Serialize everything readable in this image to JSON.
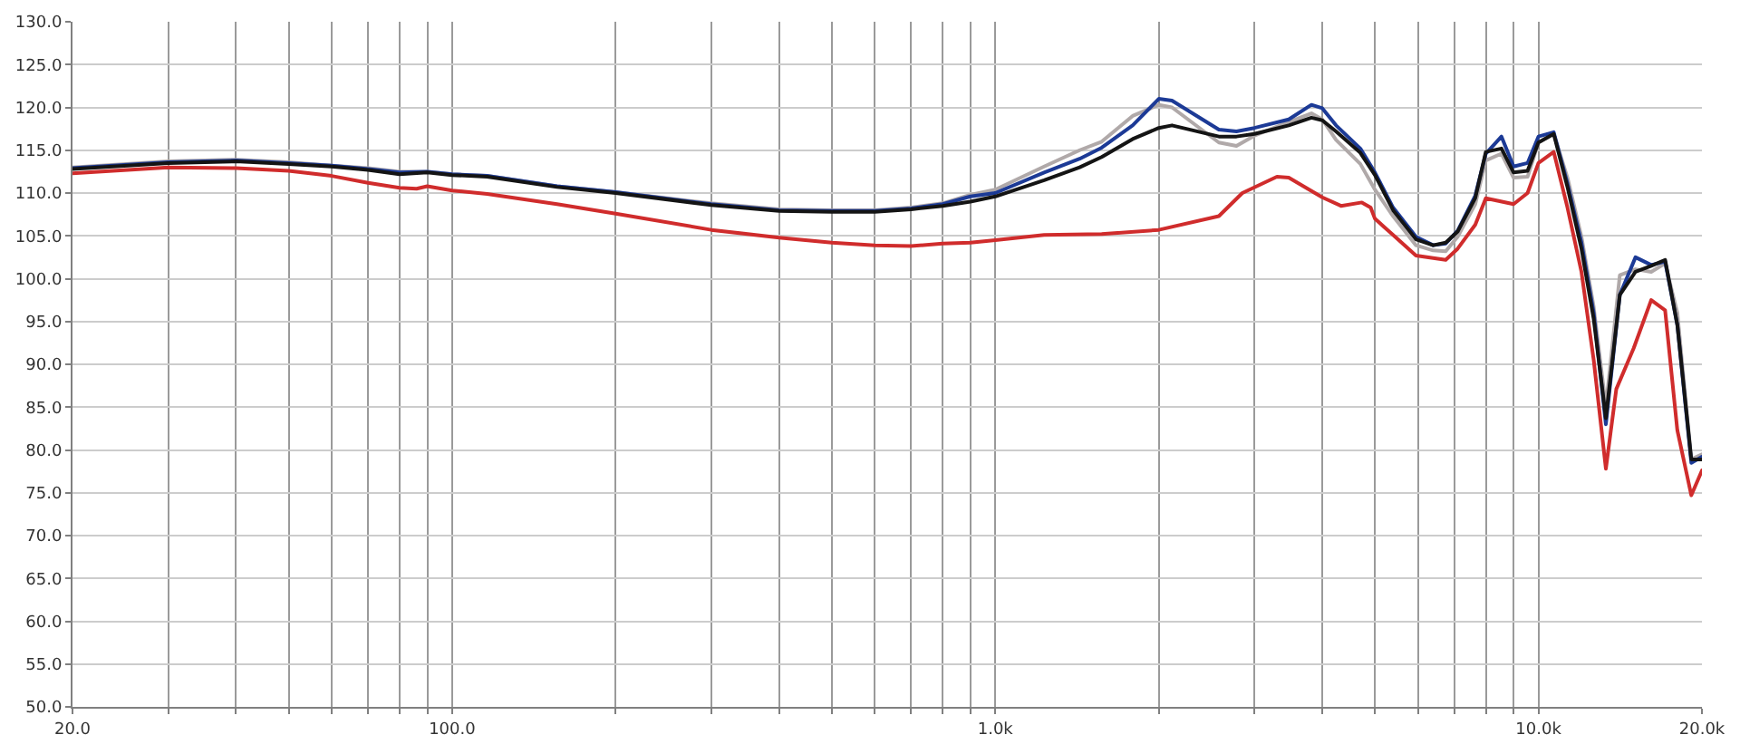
{
  "chart_data": {
    "type": "line",
    "log": "x",
    "grid": true,
    "xlim": [
      20,
      20000
    ],
    "xticks": [
      {
        "value": 20,
        "label": "20.0"
      },
      {
        "value": 30,
        "label": null
      },
      {
        "value": 40,
        "label": null
      },
      {
        "value": 50,
        "label": null
      },
      {
        "value": 60,
        "label": null
      },
      {
        "value": 70,
        "label": null
      },
      {
        "value": 80,
        "label": null
      },
      {
        "value": 90,
        "label": null
      },
      {
        "value": 100,
        "label": "100.0"
      },
      {
        "value": 200,
        "label": null
      },
      {
        "value": 300,
        "label": null
      },
      {
        "value": 400,
        "label": null
      },
      {
        "value": 500,
        "label": null
      },
      {
        "value": 600,
        "label": null
      },
      {
        "value": 700,
        "label": null
      },
      {
        "value": 800,
        "label": null
      },
      {
        "value": 900,
        "label": null
      },
      {
        "value": 1000,
        "label": "1.0k"
      },
      {
        "value": 2000,
        "label": null
      },
      {
        "value": 3000,
        "label": null
      },
      {
        "value": 4000,
        "label": null
      },
      {
        "value": 5000,
        "label": null
      },
      {
        "value": 6000,
        "label": null
      },
      {
        "value": 7000,
        "label": null
      },
      {
        "value": 8000,
        "label": null
      },
      {
        "value": 9000,
        "label": null
      },
      {
        "value": 10000,
        "label": "10.0k"
      },
      {
        "value": 20000,
        "label": "20.0k"
      }
    ],
    "ylim": [
      50,
      130
    ],
    "yticks": [
      {
        "value": 50,
        "label": "50.0"
      },
      {
        "value": 55,
        "label": "55.0"
      },
      {
        "value": 60,
        "label": "60.0"
      },
      {
        "value": 65,
        "label": "65.0"
      },
      {
        "value": 70,
        "label": "70.0"
      },
      {
        "value": 75,
        "label": "75.0"
      },
      {
        "value": 80,
        "label": "80.0"
      },
      {
        "value": 85,
        "label": "85.0"
      },
      {
        "value": 90,
        "label": "90.0"
      },
      {
        "value": 95,
        "label": "95.0"
      },
      {
        "value": 100,
        "label": "100.0"
      },
      {
        "value": 105,
        "label": "105.0"
      },
      {
        "value": 110,
        "label": "110.0"
      },
      {
        "value": 115,
        "label": "115.0"
      },
      {
        "value": 120,
        "label": "120.0"
      },
      {
        "value": 125,
        "label": "125.0"
      },
      {
        "value": 130,
        "label": "130.0"
      }
    ],
    "x": [
      20,
      30,
      40,
      50,
      60,
      70,
      80,
      90,
      100,
      116,
      156,
      200,
      300,
      400,
      500,
      600,
      700,
      800,
      900,
      1000,
      1230,
      1430,
      1570,
      1790,
      2000,
      2115,
      2580,
      2780,
      3000,
      3470,
      3820,
      4000,
      4240,
      4700,
      5000,
      5400,
      5950,
      6400,
      6750,
      7100,
      7650,
      8000,
      8550,
      9000,
      9550,
      10000,
      10670,
      11310,
      12000,
      12640,
      13310,
      14120,
      15090,
      16130,
      17110,
      18020,
      19120,
      20000
    ],
    "series": [
      {
        "color": "#b0a9a9",
        "values": [
          113.0,
          113.7,
          113.9,
          113.6,
          113.2,
          112.9,
          112.5,
          112.5,
          112.2,
          112.0,
          110.8,
          110.1,
          108.8,
          108.1,
          108.0,
          108.0,
          108.3,
          108.8,
          109.8,
          110.4,
          113.1,
          115.0,
          116.0,
          119.0,
          120.3,
          120.0,
          115.9,
          115.5,
          116.7,
          118.3,
          119.3,
          118.6,
          116.2,
          113.4,
          110.4,
          107.3,
          103.9,
          103.3,
          103.2,
          104.9,
          108.7,
          113.8,
          114.6,
          111.8,
          111.9,
          115.9,
          116.9,
          111.8,
          104.9,
          96.7,
          85.0,
          100.4,
          101.1,
          100.8,
          101.8,
          96.0,
          78.9,
          79.5
        ]
      },
      {
        "color": "#1c3a96",
        "values": [
          112.9,
          113.6,
          113.8,
          113.5,
          113.2,
          112.8,
          112.4,
          112.5,
          112.2,
          112.0,
          110.8,
          110.1,
          108.7,
          108.0,
          107.9,
          107.9,
          108.2,
          108.7,
          109.6,
          110.0,
          112.4,
          114.0,
          115.3,
          117.9,
          121.0,
          120.8,
          117.4,
          117.2,
          117.6,
          118.6,
          120.3,
          119.9,
          117.9,
          115.2,
          112.4,
          108.3,
          104.9,
          103.9,
          104.1,
          105.6,
          109.7,
          114.6,
          116.6,
          113.1,
          113.5,
          116.6,
          117.1,
          111.1,
          104.2,
          96.0,
          83.0,
          98.1,
          102.5,
          101.6,
          102.0,
          94.6,
          78.5,
          79.2
        ]
      },
      {
        "color": "#141414",
        "values": [
          112.8,
          113.5,
          113.7,
          113.4,
          113.1,
          112.7,
          112.2,
          112.4,
          112.1,
          111.9,
          110.7,
          110.0,
          108.6,
          107.9,
          107.8,
          107.8,
          108.1,
          108.5,
          109.0,
          109.6,
          111.5,
          113.0,
          114.2,
          116.3,
          117.6,
          117.9,
          116.6,
          116.6,
          116.9,
          117.9,
          118.8,
          118.5,
          117.2,
          114.7,
          112.1,
          108.0,
          104.6,
          103.9,
          104.2,
          105.5,
          109.4,
          114.8,
          115.2,
          112.4,
          112.6,
          115.9,
          116.9,
          110.7,
          103.5,
          95.3,
          83.7,
          98.1,
          100.8,
          101.5,
          102.2,
          94.6,
          78.9,
          78.9
        ]
      },
      {
        "color": "#d02c2c",
        "x": [
          20,
          30,
          40,
          50,
          60,
          70,
          80,
          86,
          90,
          100,
          116,
          156,
          200,
          300,
          400,
          500,
          600,
          700,
          800,
          900,
          1000,
          1230,
          1570,
          2000,
          2580,
          2850,
          3300,
          3470,
          4000,
          4330,
          4730,
          4910,
          5000,
          5400,
          5950,
          6750,
          7100,
          7650,
          8000,
          9000,
          9550,
          10000,
          10670,
          11310,
          12000,
          12640,
          13310,
          13910,
          14980,
          16130,
          17110,
          18020,
          19120,
          20000
        ],
        "values": [
          112.3,
          113.0,
          112.9,
          112.6,
          112.0,
          111.2,
          110.6,
          110.5,
          110.8,
          110.3,
          109.9,
          108.7,
          107.6,
          105.7,
          104.8,
          104.2,
          103.9,
          103.8,
          104.1,
          104.2,
          104.5,
          105.1,
          105.2,
          105.7,
          107.3,
          110.0,
          111.9,
          111.8,
          109.5,
          108.5,
          108.9,
          108.3,
          107.0,
          105.1,
          102.7,
          102.2,
          103.5,
          106.3,
          109.4,
          108.7,
          110.0,
          113.5,
          114.8,
          108.3,
          100.8,
          90.5,
          77.8,
          87.1,
          91.9,
          97.5,
          96.3,
          82.3,
          74.7,
          77.6
        ]
      }
    ]
  }
}
